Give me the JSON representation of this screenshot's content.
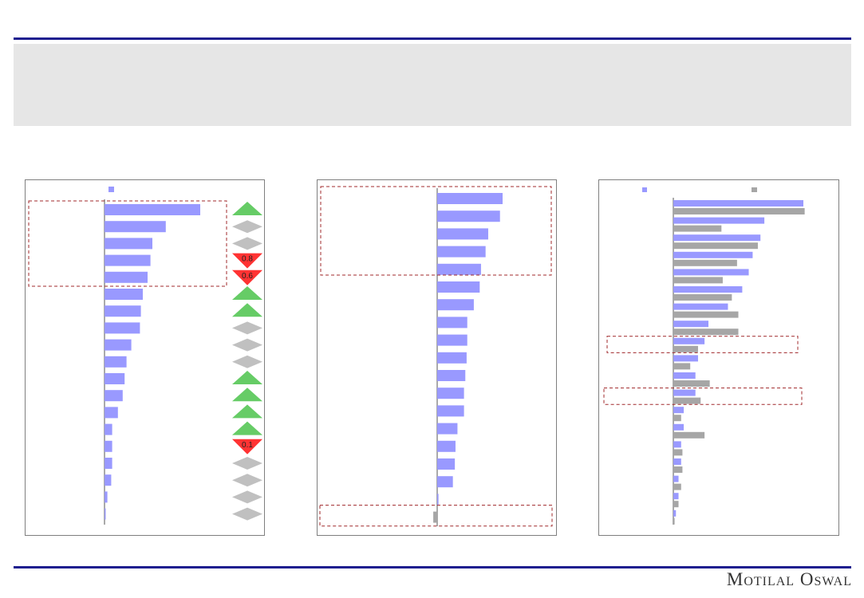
{
  "footer": {
    "brand": "Motilal Oswal"
  },
  "chart_data": [
    {
      "type": "bar",
      "orientation": "horizontal",
      "legend": {
        "position": "top",
        "entries": [
          ""
        ]
      },
      "series": [
        {
          "values": [
            100,
            64,
            50,
            48,
            45,
            40,
            38,
            37,
            28,
            23,
            21,
            19,
            14,
            8,
            8,
            8,
            7,
            3,
            1
          ]
        }
      ],
      "change_markers": [
        {
          "dir": "up",
          "label": ""
        },
        {
          "dir": "flat",
          "label": ""
        },
        {
          "dir": "flat",
          "label": ""
        },
        {
          "dir": "down",
          "label": "0.8"
        },
        {
          "dir": "down",
          "label": "0.6"
        },
        {
          "dir": "up",
          "label": ""
        },
        {
          "dir": "up",
          "label": ""
        },
        {
          "dir": "flat",
          "label": ""
        },
        {
          "dir": "flat",
          "label": ""
        },
        {
          "dir": "flat",
          "label": ""
        },
        {
          "dir": "up",
          "label": ""
        },
        {
          "dir": "up",
          "label": ""
        },
        {
          "dir": "up",
          "label": ""
        },
        {
          "dir": "up",
          "label": ""
        },
        {
          "dir": "down",
          "label": "0.1"
        },
        {
          "dir": "flat",
          "label": ""
        },
        {
          "dir": "flat",
          "label": ""
        },
        {
          "dir": "flat",
          "label": ""
        },
        {
          "dir": "flat",
          "label": ""
        }
      ],
      "highlight_rows": [
        0,
        4
      ]
    },
    {
      "type": "bar",
      "orientation": "horizontal",
      "series": [
        {
          "values": [
            100,
            96,
            78,
            74,
            67,
            65,
            56,
            46,
            46,
            45,
            43,
            41,
            41,
            31,
            28,
            27,
            24,
            2,
            -6
          ]
        }
      ],
      "highlight_rows": [
        [
          0,
          4
        ],
        [
          18,
          18
        ]
      ]
    },
    {
      "type": "bar",
      "orientation": "horizontal",
      "legend": {
        "position": "top",
        "entries": [
          "",
          ""
        ]
      },
      "series": [
        {
          "values": [
            100,
            70,
            67,
            61,
            58,
            53,
            42,
            27,
            24,
            19,
            17,
            17,
            8,
            8,
            6,
            6,
            4,
            4,
            2
          ]
        },
        {
          "values": [
            101,
            37,
            65,
            49,
            38,
            45,
            50,
            50,
            19,
            13,
            28,
            21,
            6,
            24,
            7,
            7,
            6,
            4,
            1
          ]
        }
      ],
      "highlight_rows": [
        [
          8,
          8
        ],
        [
          11,
          11
        ]
      ]
    }
  ],
  "colors": {
    "blue": "#9999ff",
    "grey": "#a6a6a6",
    "up": "#66cc66",
    "down": "#ff3333",
    "flat": "#c0c0c0",
    "rule": "#1f1f8f",
    "highlight": "#a0282b"
  }
}
